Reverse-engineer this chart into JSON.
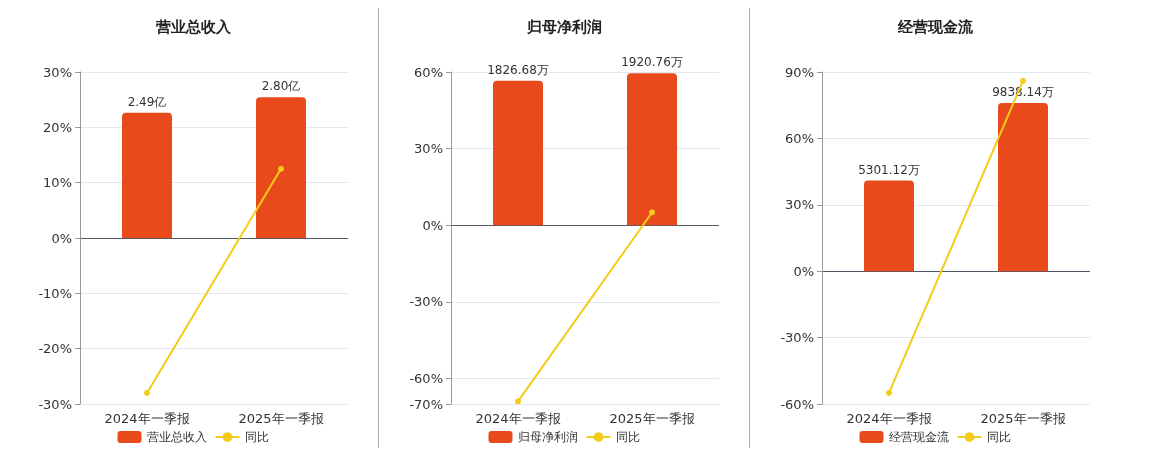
{
  "chart_data": [
    {
      "type": "bar",
      "title": "营业总收入",
      "categories": [
        "2024年一季报",
        "2025年一季报"
      ],
      "series": [
        {
          "name": "营业总收入",
          "axis": "y2",
          "color": "#e84a1b",
          "values": [
            2.49,
            2.8
          ],
          "value_labels": [
            "2.49亿",
            "2.80亿"
          ]
        },
        {
          "name": "同比",
          "type": "line",
          "color": "#f2cc18",
          "values": [
            -28,
            12.5
          ]
        }
      ],
      "y2lim": [
        -3.3,
        3.3
      ],
      "tick_labels": "xy",
      "ylim": [
        -30,
        30
      ],
      "yticks": [
        {
          "value": -30,
          "label": "-30%"
        },
        {
          "value": -20,
          "label": "-20%"
        },
        {
          "value": -10,
          "label": "-10%"
        },
        {
          "value": 0,
          "label": "0%"
        },
        {
          "value": 10,
          "label": "10%"
        },
        {
          "value": 20,
          "label": "20%"
        },
        {
          "value": 30,
          "label": "30%"
        }
      ],
      "grid": "y",
      "legend": "bottom",
      "marker": "circle"
    },
    {
      "type": "bar",
      "title": "归母净利润",
      "categories": [
        "2024年一季报",
        "2025年一季报"
      ],
      "series": [
        {
          "name": "归母净利润",
          "axis": "y2",
          "color": "#e84a1b",
          "values": [
            1826.68,
            1920.76
          ],
          "value_labels": [
            "1826.68万",
            "1920.76万"
          ]
        },
        {
          "name": "同比",
          "type": "line",
          "color": "#f2cc18",
          "values": [
            -69,
            5
          ]
        }
      ],
      "y2lim": [
        -2260,
        1937
      ],
      "tick_labels": "xy",
      "ylim": [
        -70,
        60
      ],
      "yticks": [
        {
          "value": -70,
          "label": "-70%"
        },
        {
          "value": -60,
          "label": "-60%"
        },
        {
          "value": -30,
          "label": "-30%"
        },
        {
          "value": 0,
          "label": "0%"
        },
        {
          "value": 30,
          "label": "30%"
        },
        {
          "value": 60,
          "label": "60%"
        }
      ],
      "grid": "y",
      "legend": "bottom",
      "marker": "circle"
    },
    {
      "type": "bar",
      "title": "经营现金流",
      "categories": [
        "2024年一季报",
        "2025年一季报"
      ],
      "series": [
        {
          "name": "经营现金流",
          "axis": "y2",
          "color": "#e84a1b",
          "values": [
            5301.12,
            9838.14
          ],
          "value_labels": [
            "5301.12万",
            "9838.14万"
          ]
        },
        {
          "name": "同比",
          "type": "line",
          "color": "#f2cc18",
          "values": [
            -55,
            86
          ]
        }
      ],
      "y2lim": [
        -7766,
        11648
      ],
      "tick_labels": "xy",
      "ylim": [
        -60,
        90
      ],
      "yticks": [
        {
          "value": -60,
          "label": "-60%"
        },
        {
          "value": -30,
          "label": "-30%"
        },
        {
          "value": 0,
          "label": "0%"
        },
        {
          "value": 30,
          "label": "30%"
        },
        {
          "value": 60,
          "label": "60%"
        },
        {
          "value": 90,
          "label": "90%"
        }
      ],
      "grid": "y",
      "legend": "bottom",
      "marker": "circle"
    }
  ]
}
